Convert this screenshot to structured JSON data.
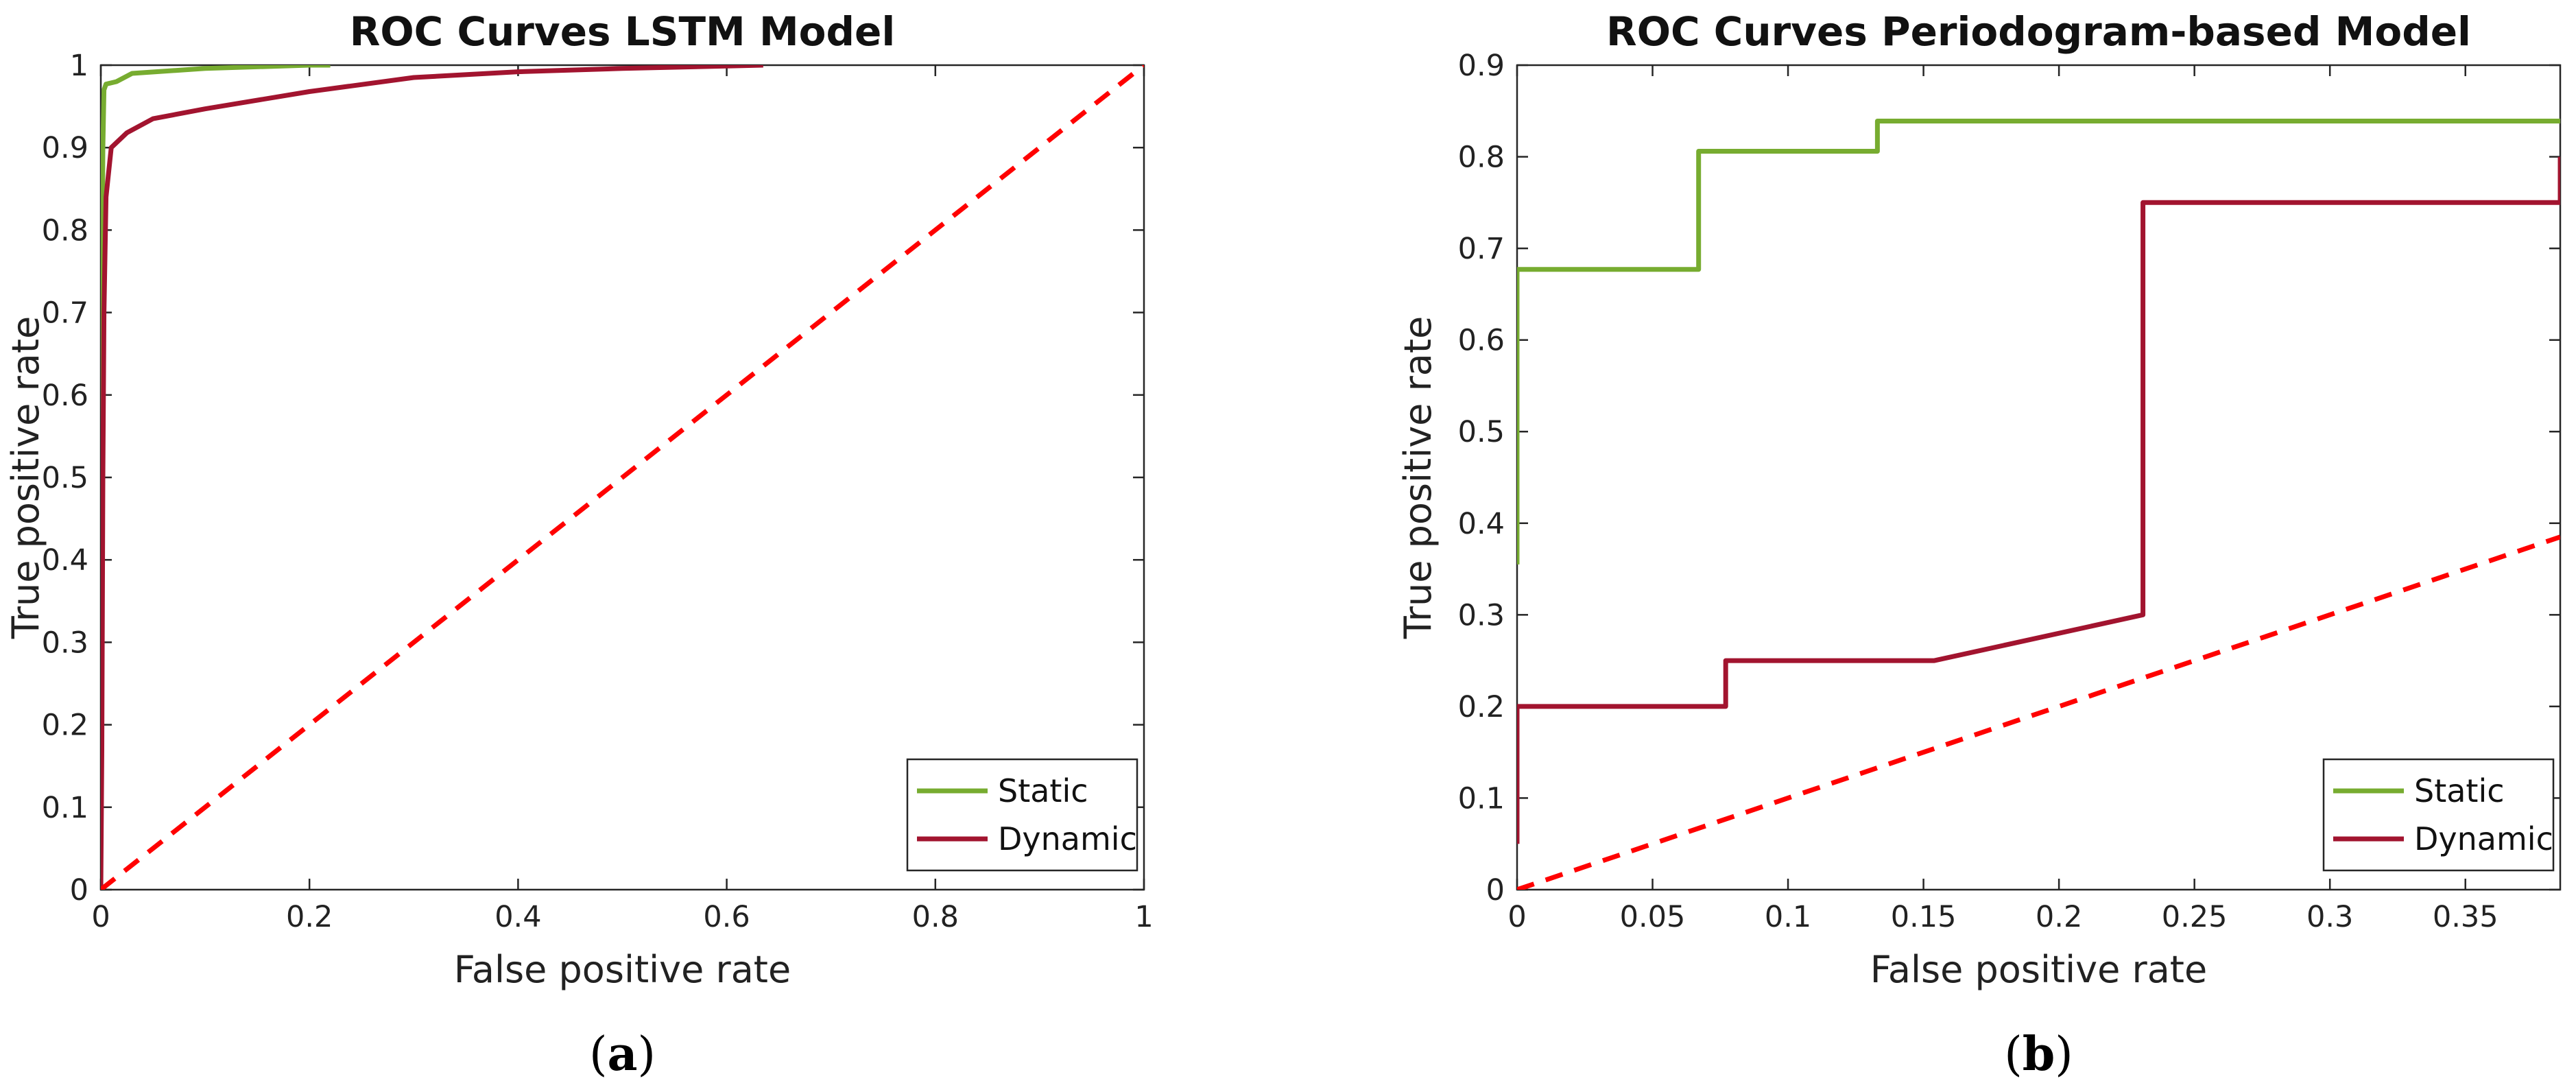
{
  "chart_data": [
    {
      "type": "line",
      "title": "ROC Curves LSTM Model",
      "xlabel": "False positive rate",
      "ylabel": "True positive rate",
      "panel_label": "a",
      "xlim": [
        0,
        1
      ],
      "ylim": [
        0,
        1
      ],
      "xticks": [
        0,
        0.2,
        0.4,
        0.6,
        0.8,
        1
      ],
      "xtick_labels": [
        "0",
        "0.2",
        "0.4",
        "0.6",
        "0.8",
        "1"
      ],
      "yticks": [
        0,
        0.1,
        0.2,
        0.3,
        0.4,
        0.5,
        0.6,
        0.7,
        0.8,
        0.9,
        1
      ],
      "ytick_labels": [
        "0",
        "0.1",
        "0.2",
        "0.3",
        "0.4",
        "0.5",
        "0.6",
        "0.7",
        "0.8",
        "0.9",
        "1"
      ],
      "grid": false,
      "legend_position": "bottom-right",
      "series": [
        {
          "name": "Static",
          "color": "#77AC30",
          "style": "solid",
          "x": [
            0,
            0,
            0.001,
            0.002,
            0.003,
            0.005,
            0.015,
            0.03,
            0.1,
            0.2,
            0.22
          ],
          "y": [
            0,
            0.35,
            0.7,
            0.9,
            0.97,
            0.977,
            0.98,
            0.99,
            0.996,
            1.0,
            1.0
          ]
        },
        {
          "name": "Dynamic",
          "color": "#A2142F",
          "style": "solid",
          "x": [
            0,
            0.001,
            0.002,
            0.003,
            0.005,
            0.01,
            0.025,
            0.05,
            0.1,
            0.2,
            0.3,
            0.4,
            0.5,
            0.6,
            0.635
          ],
          "y": [
            0,
            0.17,
            0.5,
            0.7,
            0.84,
            0.9,
            0.918,
            0.935,
            0.947,
            0.968,
            0.985,
            0.992,
            0.996,
            0.999,
            1.0
          ]
        },
        {
          "name": "Chance",
          "color": "#FF0000",
          "style": "dashed",
          "legend": false,
          "x": [
            0,
            1
          ],
          "y": [
            0,
            1
          ]
        }
      ]
    },
    {
      "type": "line",
      "title": "ROC Curves Periodogram-based Model",
      "xlabel": "False positive rate",
      "ylabel": "True positive rate",
      "panel_label": "b",
      "xlim": [
        0,
        0.385
      ],
      "ylim": [
        0,
        0.9
      ],
      "xticks": [
        0,
        0.05,
        0.1,
        0.15,
        0.2,
        0.25,
        0.3,
        0.35
      ],
      "xtick_labels": [
        "0",
        "0.05",
        "0.1",
        "0.15",
        "0.2",
        "0.25",
        "0.3",
        "0.35"
      ],
      "yticks": [
        0,
        0.1,
        0.2,
        0.3,
        0.4,
        0.5,
        0.6,
        0.7,
        0.8,
        0.9
      ],
      "ytick_labels": [
        "0",
        "0.1",
        "0.2",
        "0.3",
        "0.4",
        "0.5",
        "0.6",
        "0.7",
        "0.8",
        "0.9"
      ],
      "grid": false,
      "legend_position": "bottom-right",
      "series": [
        {
          "name": "Static",
          "color": "#77AC30",
          "style": "solid",
          "x": [
            0,
            0,
            0.067,
            0.067,
            0.133,
            0.133,
            0.385
          ],
          "y": [
            0.355,
            0.677,
            0.677,
            0.806,
            0.806,
            0.839,
            0.839
          ]
        },
        {
          "name": "Dynamic",
          "color": "#A2142F",
          "style": "solid",
          "x": [
            0,
            0,
            0.077,
            0.077,
            0.154,
            0.231,
            0.231,
            0.385,
            0.385
          ],
          "y": [
            0.05,
            0.2,
            0.2,
            0.25,
            0.25,
            0.3,
            0.75,
            0.75,
            0.8
          ]
        },
        {
          "name": "Chance",
          "color": "#FF0000",
          "style": "dashed",
          "legend": false,
          "x": [
            0,
            0.385
          ],
          "y": [
            0,
            0.385
          ]
        }
      ]
    }
  ]
}
